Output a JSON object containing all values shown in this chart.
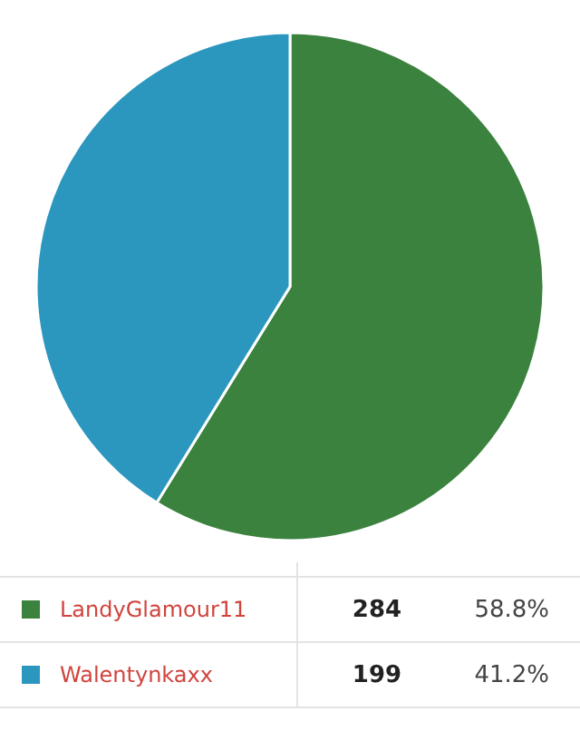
{
  "chart_data": {
    "type": "pie",
    "categories": [
      "LandyGlamour11",
      "Walentynkaxx"
    ],
    "values": [
      284,
      199
    ],
    "colors": [
      "#3a823e",
      "#2c97be"
    ],
    "value_labels": [
      "284",
      "199"
    ],
    "annotations": [
      "58.8%",
      "41.2%"
    ],
    "legend": "bottom"
  }
}
